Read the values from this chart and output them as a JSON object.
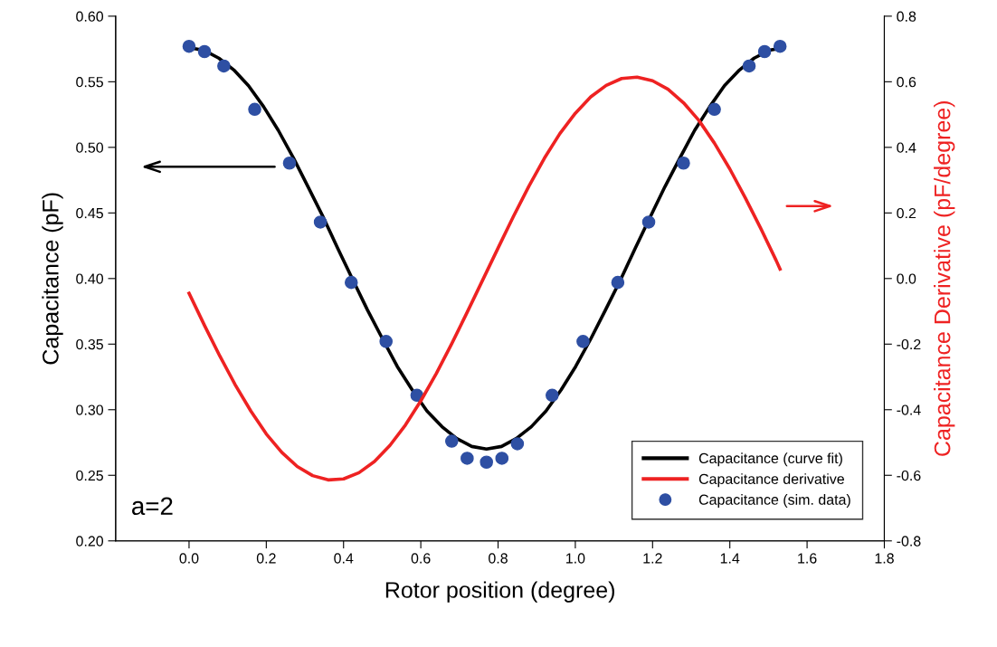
{
  "chart_data": {
    "type": "line",
    "xlabel": "Rotor position (degree)",
    "ylabel": "Capacitance (pF)",
    "y2label": "Capacitance Derivative (pF/degree)",
    "xlim": [
      -0.19,
      1.8
    ],
    "xticks": [
      {
        "value": 0,
        "label": "0.0"
      },
      0.2,
      0.4,
      0.6,
      0.8,
      {
        "value": 1,
        "label": "1.0"
      },
      1.2,
      1.4,
      1.6,
      1.8
    ],
    "ylim": [
      0.2,
      0.6
    ],
    "yticks": [
      {
        "value": 0.2,
        "label": "0.20"
      },
      {
        "value": 0.25,
        "label": "0.25"
      },
      {
        "value": 0.3,
        "label": "0.30"
      },
      {
        "value": 0.35,
        "label": "0.35"
      },
      {
        "value": 0.4,
        "label": "0.40"
      },
      {
        "value": 0.45,
        "label": "0.45"
      },
      {
        "value": 0.5,
        "label": "0.50"
      },
      {
        "value": 0.55,
        "label": "0.55"
      },
      {
        "value": 0.6,
        "label": "0.60"
      }
    ],
    "y2lim": [
      -0.8,
      0.8
    ],
    "y2ticks": [
      -0.8,
      -0.6,
      -0.4,
      -0.2,
      {
        "value": 0,
        "label": "0.0"
      },
      0.2,
      0.4,
      0.6,
      0.8
    ],
    "legend": "bottom right",
    "grid": false,
    "annotations": [
      "a=2"
    ],
    "series": [
      {
        "name": "Capacitance (curve fit)",
        "color": "#000000",
        "marker": "none",
        "x": [
          0,
          0.039,
          0.077,
          0.116,
          0.154,
          0.193,
          0.231,
          0.27,
          0.308,
          0.347,
          0.385,
          0.424,
          0.462,
          0.501,
          0.539,
          0.578,
          0.616,
          0.655,
          0.693,
          0.732,
          0.77,
          0.809,
          0.847,
          0.886,
          0.924,
          0.963,
          1.001,
          1.04,
          1.078,
          1.117,
          1.155,
          1.194,
          1.232,
          1.271,
          1.309,
          1.348,
          1.386,
          1.425,
          1.463,
          1.502,
          1.54
        ],
        "values": [
          0.576,
          0.574,
          0.568,
          0.559,
          0.547,
          0.531,
          0.513,
          0.492,
          0.47,
          0.447,
          0.423,
          0.399,
          0.376,
          0.354,
          0.333,
          0.315,
          0.299,
          0.287,
          0.278,
          0.272,
          0.27,
          0.272,
          0.278,
          0.287,
          0.299,
          0.315,
          0.333,
          0.354,
          0.376,
          0.399,
          0.423,
          0.447,
          0.47,
          0.492,
          0.513,
          0.531,
          0.547,
          0.559,
          0.568,
          0.574,
          0.576
        ]
      },
      {
        "name": "Capacitance derivative",
        "axis": "y2",
        "color": "#ee2222",
        "marker": "none",
        "x": [
          0,
          0.04,
          0.08,
          0.12,
          0.16,
          0.2,
          0.24,
          0.28,
          0.32,
          0.36,
          0.4,
          0.44,
          0.48,
          0.52,
          0.56,
          0.6,
          0.64,
          0.68,
          0.72,
          0.76,
          0.8,
          0.84,
          0.88,
          0.92,
          0.96,
          1.0,
          1.04,
          1.08,
          1.12,
          1.16,
          1.2,
          1.24,
          1.28,
          1.32,
          1.36,
          1.4,
          1.44,
          1.48,
          1.52,
          1.53
        ],
        "values": [
          -0.045,
          -0.143,
          -0.237,
          -0.325,
          -0.404,
          -0.474,
          -0.53,
          -0.573,
          -0.601,
          -0.614,
          -0.611,
          -0.592,
          -0.558,
          -0.509,
          -0.447,
          -0.373,
          -0.29,
          -0.199,
          -0.103,
          -0.005,
          0.093,
          0.19,
          0.282,
          0.367,
          0.442,
          0.504,
          0.554,
          0.589,
          0.61,
          0.614,
          0.603,
          0.577,
          0.536,
          0.482,
          0.413,
          0.334,
          0.246,
          0.153,
          0.055,
          0.029
        ]
      },
      {
        "name": "Capacitance (sim. data)",
        "type": "scatter",
        "color": "#2e4fa3",
        "marker": "circle",
        "x": [
          0,
          0.04,
          0.09,
          0.17,
          0.26,
          0.34,
          0.42,
          0.51,
          0.59,
          0.68,
          0.72,
          0.77,
          0.81,
          0.85,
          0.94,
          1.02,
          1.11,
          1.19,
          1.28,
          1.36,
          1.45,
          1.49,
          1.53
        ],
        "values": [
          0.577,
          0.573,
          0.562,
          0.529,
          0.488,
          0.443,
          0.397,
          0.352,
          0.311,
          0.276,
          0.263,
          0.26,
          0.263,
          0.274,
          0.311,
          0.352,
          0.397,
          0.443,
          0.488,
          0.529,
          0.562,
          0.573,
          0.577
        ]
      }
    ]
  }
}
